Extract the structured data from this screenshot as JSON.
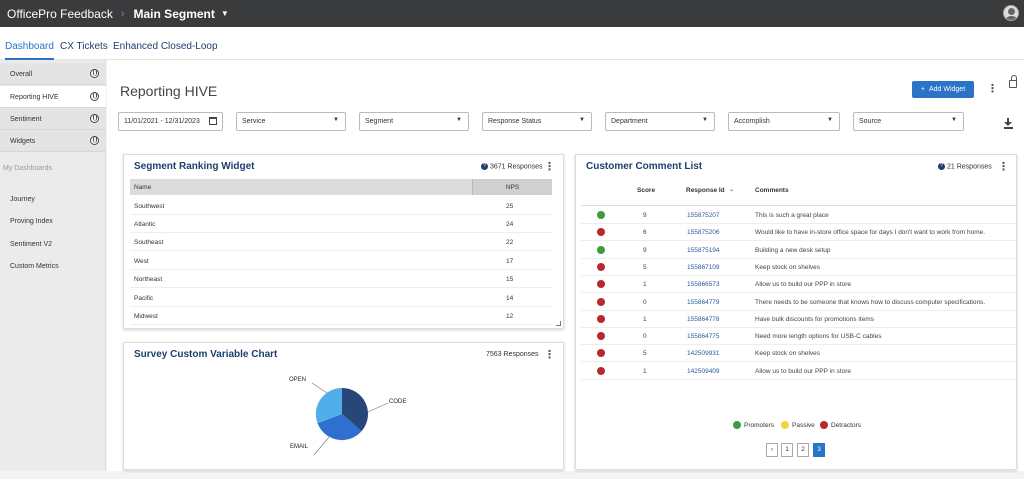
{
  "app": {
    "title": "OfficePro Feedback",
    "separator": "›",
    "segment": "Main Segment"
  },
  "tabs": [
    {
      "label": "Dashboard"
    },
    {
      "label": "CX Tickets"
    },
    {
      "label": "Enhanced Closed-Loop"
    }
  ],
  "sidebar": {
    "items": [
      {
        "label": "Overall"
      },
      {
        "label": "Reporting HIVE"
      },
      {
        "label": "Sentiment"
      },
      {
        "label": "Widgets"
      }
    ],
    "section": "My Dashboards",
    "dashboards": [
      {
        "label": "Journey"
      },
      {
        "label": "Proving Index"
      },
      {
        "label": "Sentiment V2"
      },
      {
        "label": "Custom Metrics"
      }
    ]
  },
  "page": {
    "title": "Reporting HIVE",
    "add_widget": "Add Widget"
  },
  "filters": {
    "date": "11/01/2021 - 12/31/2023",
    "service": "Service",
    "segment": "Segment",
    "response_status": "Response Status",
    "department": "Department",
    "accomplish": "Accomplish",
    "source": "Source"
  },
  "segment_ranking": {
    "title": "Segment Ranking Widget",
    "responses": "3671 Responses",
    "col_name": "Name",
    "col_nps": "NPS",
    "rows": [
      {
        "name": "Southwest",
        "nps": "25"
      },
      {
        "name": "Atlantic",
        "nps": "24"
      },
      {
        "name": "Southeast",
        "nps": "22"
      },
      {
        "name": "West",
        "nps": "17"
      },
      {
        "name": "Northeast",
        "nps": "15"
      },
      {
        "name": "Pacific",
        "nps": "14"
      },
      {
        "name": "Midwest",
        "nps": "12"
      }
    ]
  },
  "survey_chart": {
    "title": "Survey Custom Variable Chart",
    "responses": "7563 Responses",
    "labels": {
      "open": "OPEN",
      "code": "CODE",
      "email": "EMAIL"
    }
  },
  "comments": {
    "title": "Customer Comment List",
    "responses": "21 Responses",
    "col_score": "Score",
    "col_response_id": "Response Id",
    "col_comments": "Comments",
    "rows": [
      {
        "status": "promoter",
        "score": "9",
        "id": "155875207",
        "comment": "This is such a great place"
      },
      {
        "status": "detractor",
        "score": "6",
        "id": "155875206",
        "comment": "Would like to have in-store office space for days I don't want to work from home."
      },
      {
        "status": "promoter",
        "score": "9",
        "id": "155875194",
        "comment": "Building a new desk setup"
      },
      {
        "status": "detractor",
        "score": "5",
        "id": "155867109",
        "comment": "Keep stock on shelves"
      },
      {
        "status": "detractor",
        "score": "1",
        "id": "155866573",
        "comment": "Allow us to build our PPP in store"
      },
      {
        "status": "detractor",
        "score": "0",
        "id": "155864779",
        "comment": "There needs to be someone that knows how to discuss computer specifications."
      },
      {
        "status": "detractor",
        "score": "1",
        "id": "155864778",
        "comment": "Have bulk discounts for promotions items"
      },
      {
        "status": "detractor",
        "score": "0",
        "id": "155864775",
        "comment": "Need more length options for USB-C cables"
      },
      {
        "status": "detractor",
        "score": "5",
        "id": "142509931",
        "comment": "Keep stock on shelves"
      },
      {
        "status": "detractor",
        "score": "1",
        "id": "142509409",
        "comment": "Allow us to build our PPP in store"
      }
    ],
    "legend": {
      "promoters": "Promoters",
      "passive": "Passive",
      "detractors": "Detractors"
    },
    "pages": [
      "‹",
      "1",
      "2",
      "3"
    ]
  },
  "colors": {
    "promoter": "#3d9c3d",
    "passive": "#f0d43a",
    "detractor": "#b8292e",
    "accent": "#2a73c9",
    "title": "#1e3f6e"
  }
}
